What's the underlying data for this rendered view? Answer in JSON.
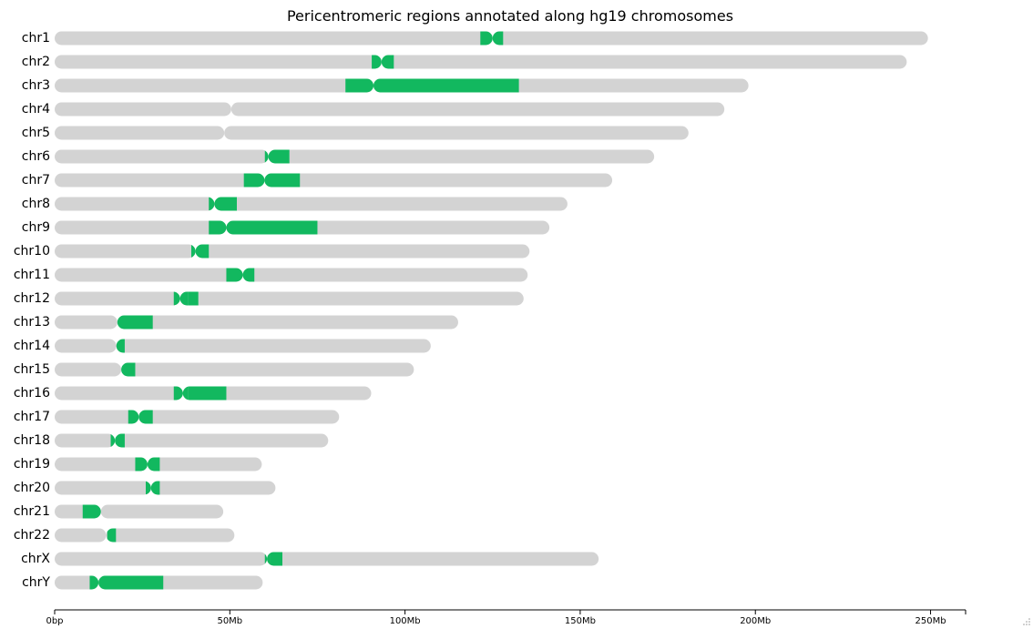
{
  "chart_data": {
    "type": "ideogram",
    "title": "Pericentromeric regions annotated along hg19 chromosomes",
    "xlabel": "",
    "ylabel": "",
    "x_unit": "bp",
    "xlim": [
      0,
      260000000
    ],
    "xticks": [
      {
        "value": 0,
        "label": "0bp"
      },
      {
        "value": 50000000,
        "label": "50Mb"
      },
      {
        "value": 100000000,
        "label": "100Mb"
      },
      {
        "value": 150000000,
        "label": "150Mb"
      },
      {
        "value": 200000000,
        "label": "200Mb"
      },
      {
        "value": 250000000,
        "label": "250Mb"
      }
    ],
    "grid": false,
    "colors": {
      "chromosome": "#d3d3d3",
      "region": "#12b85f",
      "text": "#000000"
    },
    "chromosomes": [
      {
        "name": "chr1",
        "length": 249250621,
        "centromere": 125000000,
        "regions": [
          [
            121500000,
            125000000
          ],
          [
            125000000,
            128000000
          ]
        ]
      },
      {
        "name": "chr2",
        "length": 243199373,
        "centromere": 93300000,
        "regions": [
          [
            90500000,
            93300000
          ],
          [
            93300000,
            96800000
          ]
        ]
      },
      {
        "name": "chr3",
        "length": 198022430,
        "centromere": 91000000,
        "regions": [
          [
            83000000,
            91000000
          ],
          [
            91000000,
            132500000
          ]
        ]
      },
      {
        "name": "chr4",
        "length": 191154276,
        "centromere": 50400000,
        "regions": []
      },
      {
        "name": "chr5",
        "length": 180915260,
        "centromere": 48400000,
        "regions": []
      },
      {
        "name": "chr6",
        "length": 171115067,
        "centromere": 61000000,
        "regions": [
          [
            60000000,
            61000000
          ],
          [
            61000000,
            67000000
          ]
        ]
      },
      {
        "name": "chr7",
        "length": 159138663,
        "centromere": 59900000,
        "regions": [
          [
            54000000,
            59900000
          ],
          [
            59900000,
            70000000
          ]
        ]
      },
      {
        "name": "chr8",
        "length": 146364022,
        "centromere": 45600000,
        "regions": [
          [
            44000000,
            45600000
          ],
          [
            45600000,
            52000000
          ]
        ]
      },
      {
        "name": "chr9",
        "length": 141213431,
        "centromere": 49000000,
        "regions": [
          [
            44000000,
            49000000
          ],
          [
            49000000,
            75000000
          ]
        ]
      },
      {
        "name": "chr10",
        "length": 135534747,
        "centromere": 40200000,
        "regions": [
          [
            39000000,
            40200000
          ],
          [
            40200000,
            44000000
          ]
        ]
      },
      {
        "name": "chr11",
        "length": 135006516,
        "centromere": 53700000,
        "regions": [
          [
            49000000,
            53700000
          ],
          [
            53700000,
            57000000
          ]
        ]
      },
      {
        "name": "chr12",
        "length": 133851895,
        "centromere": 35800000,
        "regions": [
          [
            34000000,
            38000000
          ],
          [
            38000000,
            41000000
          ]
        ]
      },
      {
        "name": "chr13",
        "length": 115169878,
        "centromere": 17900000,
        "regions": [
          [
            17900000,
            28000000
          ]
        ]
      },
      {
        "name": "chr14",
        "length": 107349540,
        "centromere": 17600000,
        "regions": [
          [
            17600000,
            20000000
          ]
        ]
      },
      {
        "name": "chr15",
        "length": 102531392,
        "centromere": 19000000,
        "regions": [
          [
            19000000,
            23000000
          ]
        ]
      },
      {
        "name": "chr16",
        "length": 90354753,
        "centromere": 36600000,
        "regions": [
          [
            34000000,
            38000000
          ],
          [
            38000000,
            49000000
          ]
        ]
      },
      {
        "name": "chr17",
        "length": 81195210,
        "centromere": 24000000,
        "regions": [
          [
            21000000,
            24000000
          ],
          [
            24000000,
            28000000
          ]
        ]
      },
      {
        "name": "chr18",
        "length": 78077248,
        "centromere": 17200000,
        "regions": [
          [
            16000000,
            17200000
          ],
          [
            17200000,
            20000000
          ]
        ]
      },
      {
        "name": "chr19",
        "length": 59128983,
        "centromere": 26500000,
        "regions": [
          [
            23000000,
            26500000
          ],
          [
            26500000,
            30000000
          ]
        ]
      },
      {
        "name": "chr20",
        "length": 63025520,
        "centromere": 27500000,
        "regions": [
          [
            26000000,
            27500000
          ],
          [
            27500000,
            30000000
          ]
        ]
      },
      {
        "name": "chr21",
        "length": 48129895,
        "centromere": 13200000,
        "regions": [
          [
            8000000,
            13200000
          ]
        ]
      },
      {
        "name": "chr22",
        "length": 51304566,
        "centromere": 14700000,
        "regions": [
          [
            15000000,
            17500000
          ]
        ]
      },
      {
        "name": "chrX",
        "length": 155270560,
        "centromere": 60600000,
        "regions": [
          [
            60000000,
            61500000
          ],
          [
            61500000,
            65000000
          ]
        ]
      },
      {
        "name": "chrY",
        "length": 59373566,
        "centromere": 12500000,
        "regions": [
          [
            10000000,
            12500000
          ],
          [
            12500000,
            31000000
          ]
        ]
      }
    ]
  }
}
